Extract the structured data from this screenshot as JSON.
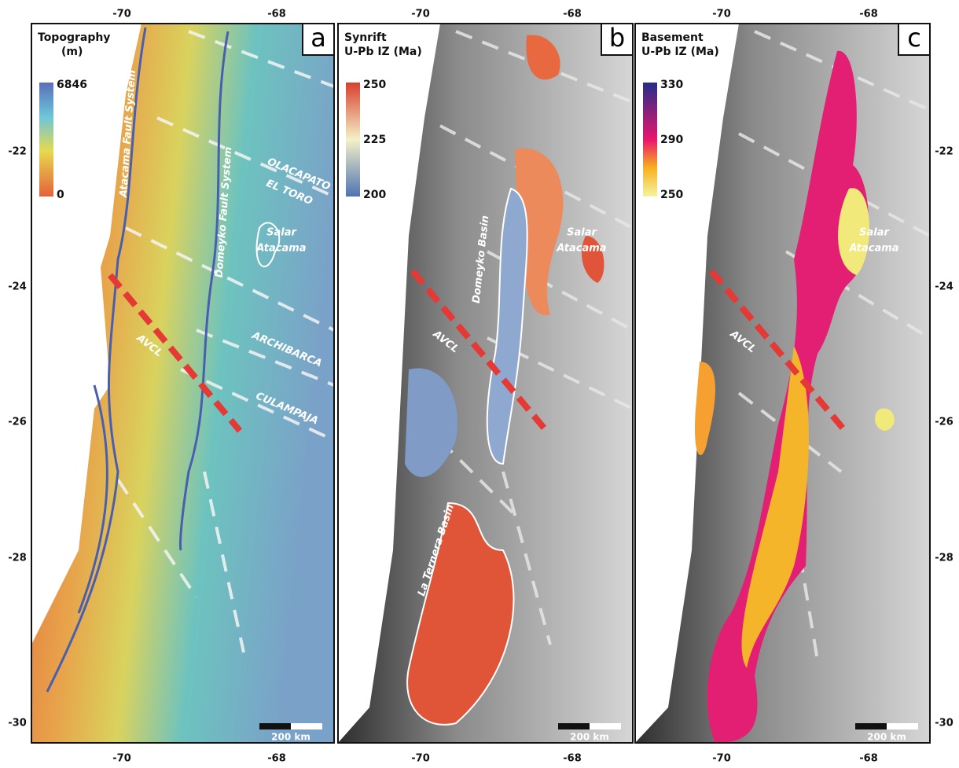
{
  "lon_ticks": [
    -70,
    -68
  ],
  "lat_ticks": [
    -22,
    -24,
    -26,
    -28,
    -30
  ],
  "panels": [
    {
      "letter": "a",
      "legend": {
        "title": [
          "Topography",
          "(m)"
        ],
        "ticks": [
          6846,
          0
        ]
      },
      "scale": "200 km",
      "labels": [
        "Atacama Fault System",
        "Domeyko Fault System",
        "OLACAPATO",
        "EL TORO",
        "Salar",
        "Atacama",
        "ARCHIBARCA",
        "CULAMPAJA",
        "AVCL"
      ]
    },
    {
      "letter": "b",
      "legend": {
        "title": [
          "Synrift",
          "U-Pb IZ (Ma)"
        ],
        "ticks": [
          250,
          225,
          200
        ]
      },
      "scale": "200 km",
      "labels": [
        "Domeyko Basin",
        "Salar",
        "Atacama",
        "AVCL",
        "La Ternera Basin"
      ]
    },
    {
      "letter": "c",
      "legend": {
        "title": [
          "Basement",
          "U-Pb IZ (Ma)"
        ],
        "ticks": [
          330,
          290,
          250
        ]
      },
      "scale": "200 km",
      "labels": [
        "Salar",
        "Atacama",
        "AVCL"
      ]
    }
  ]
}
